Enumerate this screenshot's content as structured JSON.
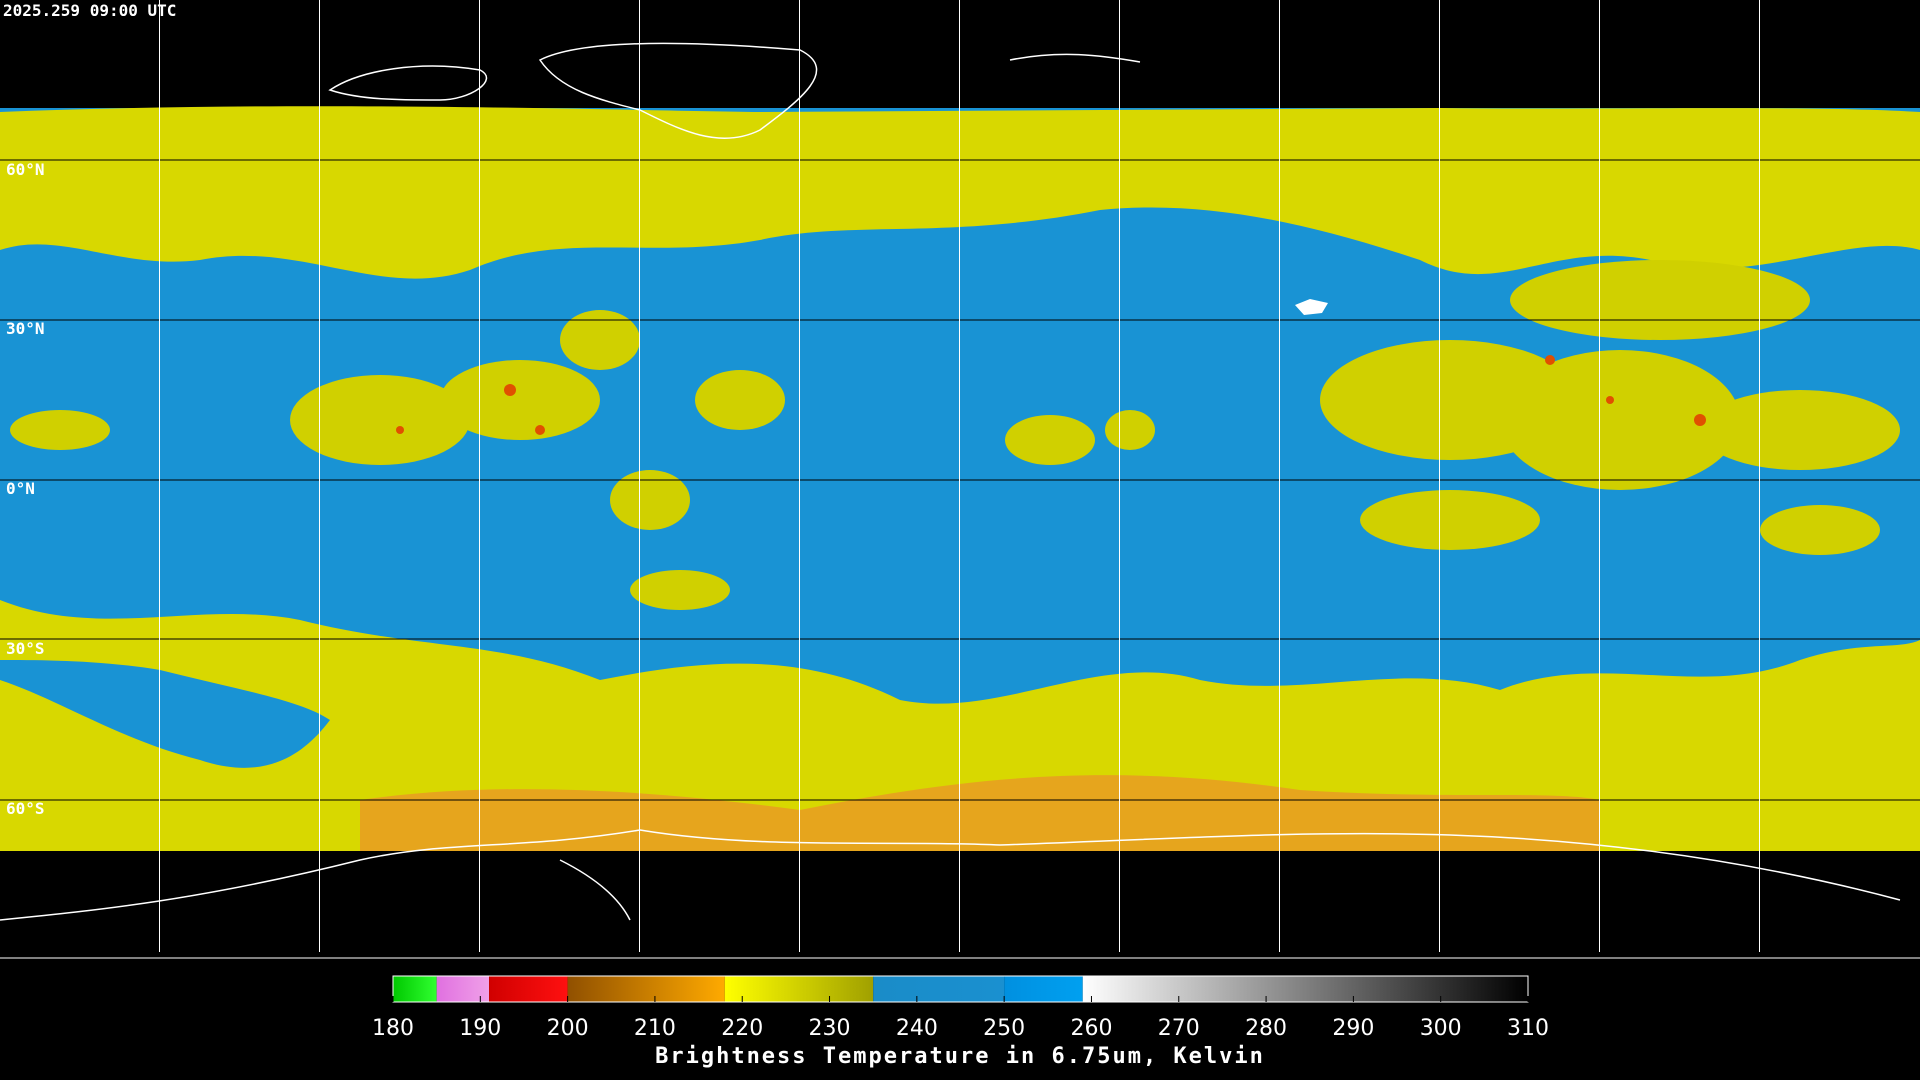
{
  "header": {
    "timestamp": "2025.259 09:00 UTC"
  },
  "map": {
    "latitude_labels": [
      "60°N",
      "30°N",
      "0°N",
      "30°S",
      "60°S"
    ]
  },
  "colorbar": {
    "title": "Brightness Temperature in 6.75um, Kelvin",
    "lim": [
      180,
      310
    ],
    "ticks": [
      180,
      190,
      200,
      210,
      220,
      230,
      240,
      250,
      260,
      270,
      280,
      290,
      300,
      310
    ],
    "stops": [
      {
        "from": 180,
        "to": 185,
        "color": "#00c800",
        "color2": "#30ff30"
      },
      {
        "from": 185,
        "to": 191,
        "color": "#e070e0",
        "color2": "#f0a0e8"
      },
      {
        "from": 191,
        "to": 200,
        "color": "#d00000",
        "color2": "#ff1010"
      },
      {
        "from": 200,
        "to": 218,
        "color": "#905000",
        "color2": "#ffaa00"
      },
      {
        "from": 218,
        "to": 235,
        "color": "#ffff00",
        "color2": "#a0a000"
      },
      {
        "from": 235,
        "to": 250,
        "color": "#1a8cc8",
        "color2": "#1a90d0"
      },
      {
        "from": 250,
        "to": 259,
        "color": "#0090e0",
        "color2": "#00a0f0"
      },
      {
        "from": 259,
        "to": 310,
        "color": "#ffffff",
        "color2": "#000000"
      }
    ]
  }
}
